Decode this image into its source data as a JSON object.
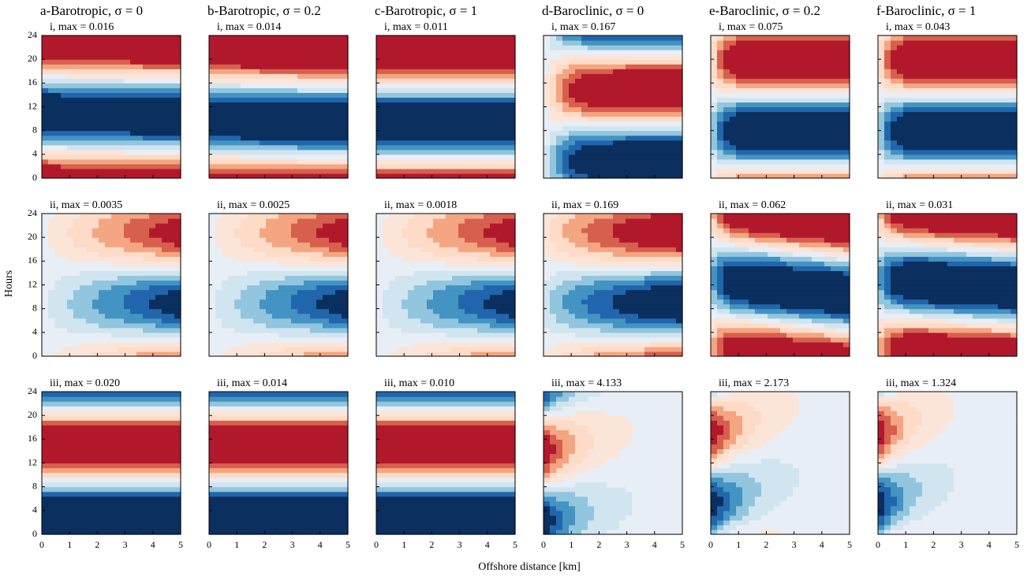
{
  "x_label": "Offshore distance [km]",
  "y_label": "Hours",
  "chart_data": [
    {
      "type": "contour",
      "title": "a-Barotropic, σ = 0",
      "subtitle": "i, max = 0.016",
      "xlim": [
        0,
        5
      ],
      "xticks": [
        0,
        1,
        2,
        3,
        4,
        5
      ],
      "ylim": [
        0,
        24
      ],
      "yticks": [
        0,
        4,
        8,
        12,
        16,
        20,
        24
      ]
    },
    {
      "type": "contour",
      "title": "b-Barotropic, σ = 0.2",
      "subtitle": "i, max = 0.014",
      "xlim": [
        0,
        5
      ],
      "xticks": [
        0,
        1,
        2,
        3,
        4,
        5
      ],
      "ylim": [
        0,
        24
      ],
      "yticks": [
        0,
        4,
        8,
        12,
        16,
        20,
        24
      ]
    },
    {
      "type": "contour",
      "title": "c-Barotropic, σ = 1",
      "subtitle": "i, max = 0.011",
      "xlim": [
        0,
        5
      ],
      "xticks": [
        0,
        1,
        2,
        3,
        4,
        5
      ],
      "ylim": [
        0,
        24
      ],
      "yticks": [
        0,
        4,
        8,
        12,
        16,
        20,
        24
      ]
    },
    {
      "type": "contour",
      "title": "d-Baroclinic, σ = 0",
      "subtitle": "i, max = 0.167",
      "xlim": [
        0,
        5
      ],
      "xticks": [
        0,
        1,
        2,
        3,
        4,
        5
      ],
      "ylim": [
        0,
        24
      ],
      "yticks": [
        0,
        4,
        8,
        12,
        16,
        20,
        24
      ]
    },
    {
      "type": "contour",
      "title": "e-Baroclinic, σ = 0.2",
      "subtitle": "i, max = 0.075",
      "xlim": [
        0,
        5
      ],
      "xticks": [
        0,
        1,
        2,
        3,
        4,
        5
      ],
      "ylim": [
        0,
        24
      ],
      "yticks": [
        0,
        4,
        8,
        12,
        16,
        20,
        24
      ]
    },
    {
      "type": "contour",
      "title": "f-Baroclinic, σ = 1",
      "subtitle": "i, max = 0.043",
      "xlim": [
        0,
        5
      ],
      "xticks": [
        0,
        1,
        2,
        3,
        4,
        5
      ],
      "ylim": [
        0,
        24
      ],
      "yticks": [
        0,
        4,
        8,
        12,
        16,
        20,
        24
      ]
    },
    {
      "type": "contour",
      "subtitle": "ii, max = 0.0035",
      "xlim": [
        0,
        5
      ],
      "xticks": [
        0,
        1,
        2,
        3,
        4,
        5
      ],
      "ylim": [
        0,
        24
      ],
      "yticks": [
        0,
        4,
        8,
        12,
        16,
        20,
        24
      ]
    },
    {
      "type": "contour",
      "subtitle": "ii, max = 0.0025",
      "xlim": [
        0,
        5
      ],
      "xticks": [
        0,
        1,
        2,
        3,
        4,
        5
      ],
      "ylim": [
        0,
        24
      ],
      "yticks": [
        0,
        4,
        8,
        12,
        16,
        20,
        24
      ]
    },
    {
      "type": "contour",
      "subtitle": "ii, max = 0.0018",
      "xlim": [
        0,
        5
      ],
      "xticks": [
        0,
        1,
        2,
        3,
        4,
        5
      ],
      "ylim": [
        0,
        24
      ],
      "yticks": [
        0,
        4,
        8,
        12,
        16,
        20,
        24
      ]
    },
    {
      "type": "contour",
      "subtitle": "ii, max = 0.169",
      "xlim": [
        0,
        5
      ],
      "xticks": [
        0,
        1,
        2,
        3,
        4,
        5
      ],
      "ylim": [
        0,
        24
      ],
      "yticks": [
        0,
        4,
        8,
        12,
        16,
        20,
        24
      ]
    },
    {
      "type": "contour",
      "subtitle": "ii, max = 0.062",
      "xlim": [
        0,
        5
      ],
      "xticks": [
        0,
        1,
        2,
        3,
        4,
        5
      ],
      "ylim": [
        0,
        24
      ],
      "yticks": [
        0,
        4,
        8,
        12,
        16,
        20,
        24
      ]
    },
    {
      "type": "contour",
      "subtitle": "ii, max = 0.031",
      "xlim": [
        0,
        5
      ],
      "xticks": [
        0,
        1,
        2,
        3,
        4,
        5
      ],
      "ylim": [
        0,
        24
      ],
      "yticks": [
        0,
        4,
        8,
        12,
        16,
        20,
        24
      ]
    },
    {
      "type": "contour",
      "subtitle": "iii, max = 0.020",
      "xlim": [
        0,
        5
      ],
      "xticks": [
        0,
        1,
        2,
        3,
        4,
        5
      ],
      "ylim": [
        0,
        24
      ],
      "yticks": [
        0,
        4,
        8,
        12,
        16,
        20,
        24
      ]
    },
    {
      "type": "contour",
      "subtitle": "iii, max = 0.014",
      "xlim": [
        0,
        5
      ],
      "xticks": [
        0,
        1,
        2,
        3,
        4,
        5
      ],
      "ylim": [
        0,
        24
      ],
      "yticks": [
        0,
        4,
        8,
        12,
        16,
        20,
        24
      ]
    },
    {
      "type": "contour",
      "subtitle": "iii, max = 0.010",
      "xlim": [
        0,
        5
      ],
      "xticks": [
        0,
        1,
        2,
        3,
        4,
        5
      ],
      "ylim": [
        0,
        24
      ],
      "yticks": [
        0,
        4,
        8,
        12,
        16,
        20,
        24
      ]
    },
    {
      "type": "contour",
      "subtitle": "iii, max = 4.133",
      "xlim": [
        0,
        5
      ],
      "xticks": [
        0,
        1,
        2,
        3,
        4,
        5
      ],
      "ylim": [
        0,
        24
      ],
      "yticks": [
        0,
        4,
        8,
        12,
        16,
        20,
        24
      ]
    },
    {
      "type": "contour",
      "subtitle": "iii, max = 2.173",
      "xlim": [
        0,
        5
      ],
      "xticks": [
        0,
        1,
        2,
        3,
        4,
        5
      ],
      "ylim": [
        0,
        24
      ],
      "yticks": [
        0,
        4,
        8,
        12,
        16,
        20,
        24
      ]
    },
    {
      "type": "contour",
      "subtitle": "iii, max = 1.324",
      "xlim": [
        0,
        5
      ],
      "xticks": [
        0,
        1,
        2,
        3,
        4,
        5
      ],
      "ylim": [
        0,
        24
      ],
      "yticks": [
        0,
        4,
        8,
        12,
        16,
        20,
        24
      ]
    }
  ]
}
